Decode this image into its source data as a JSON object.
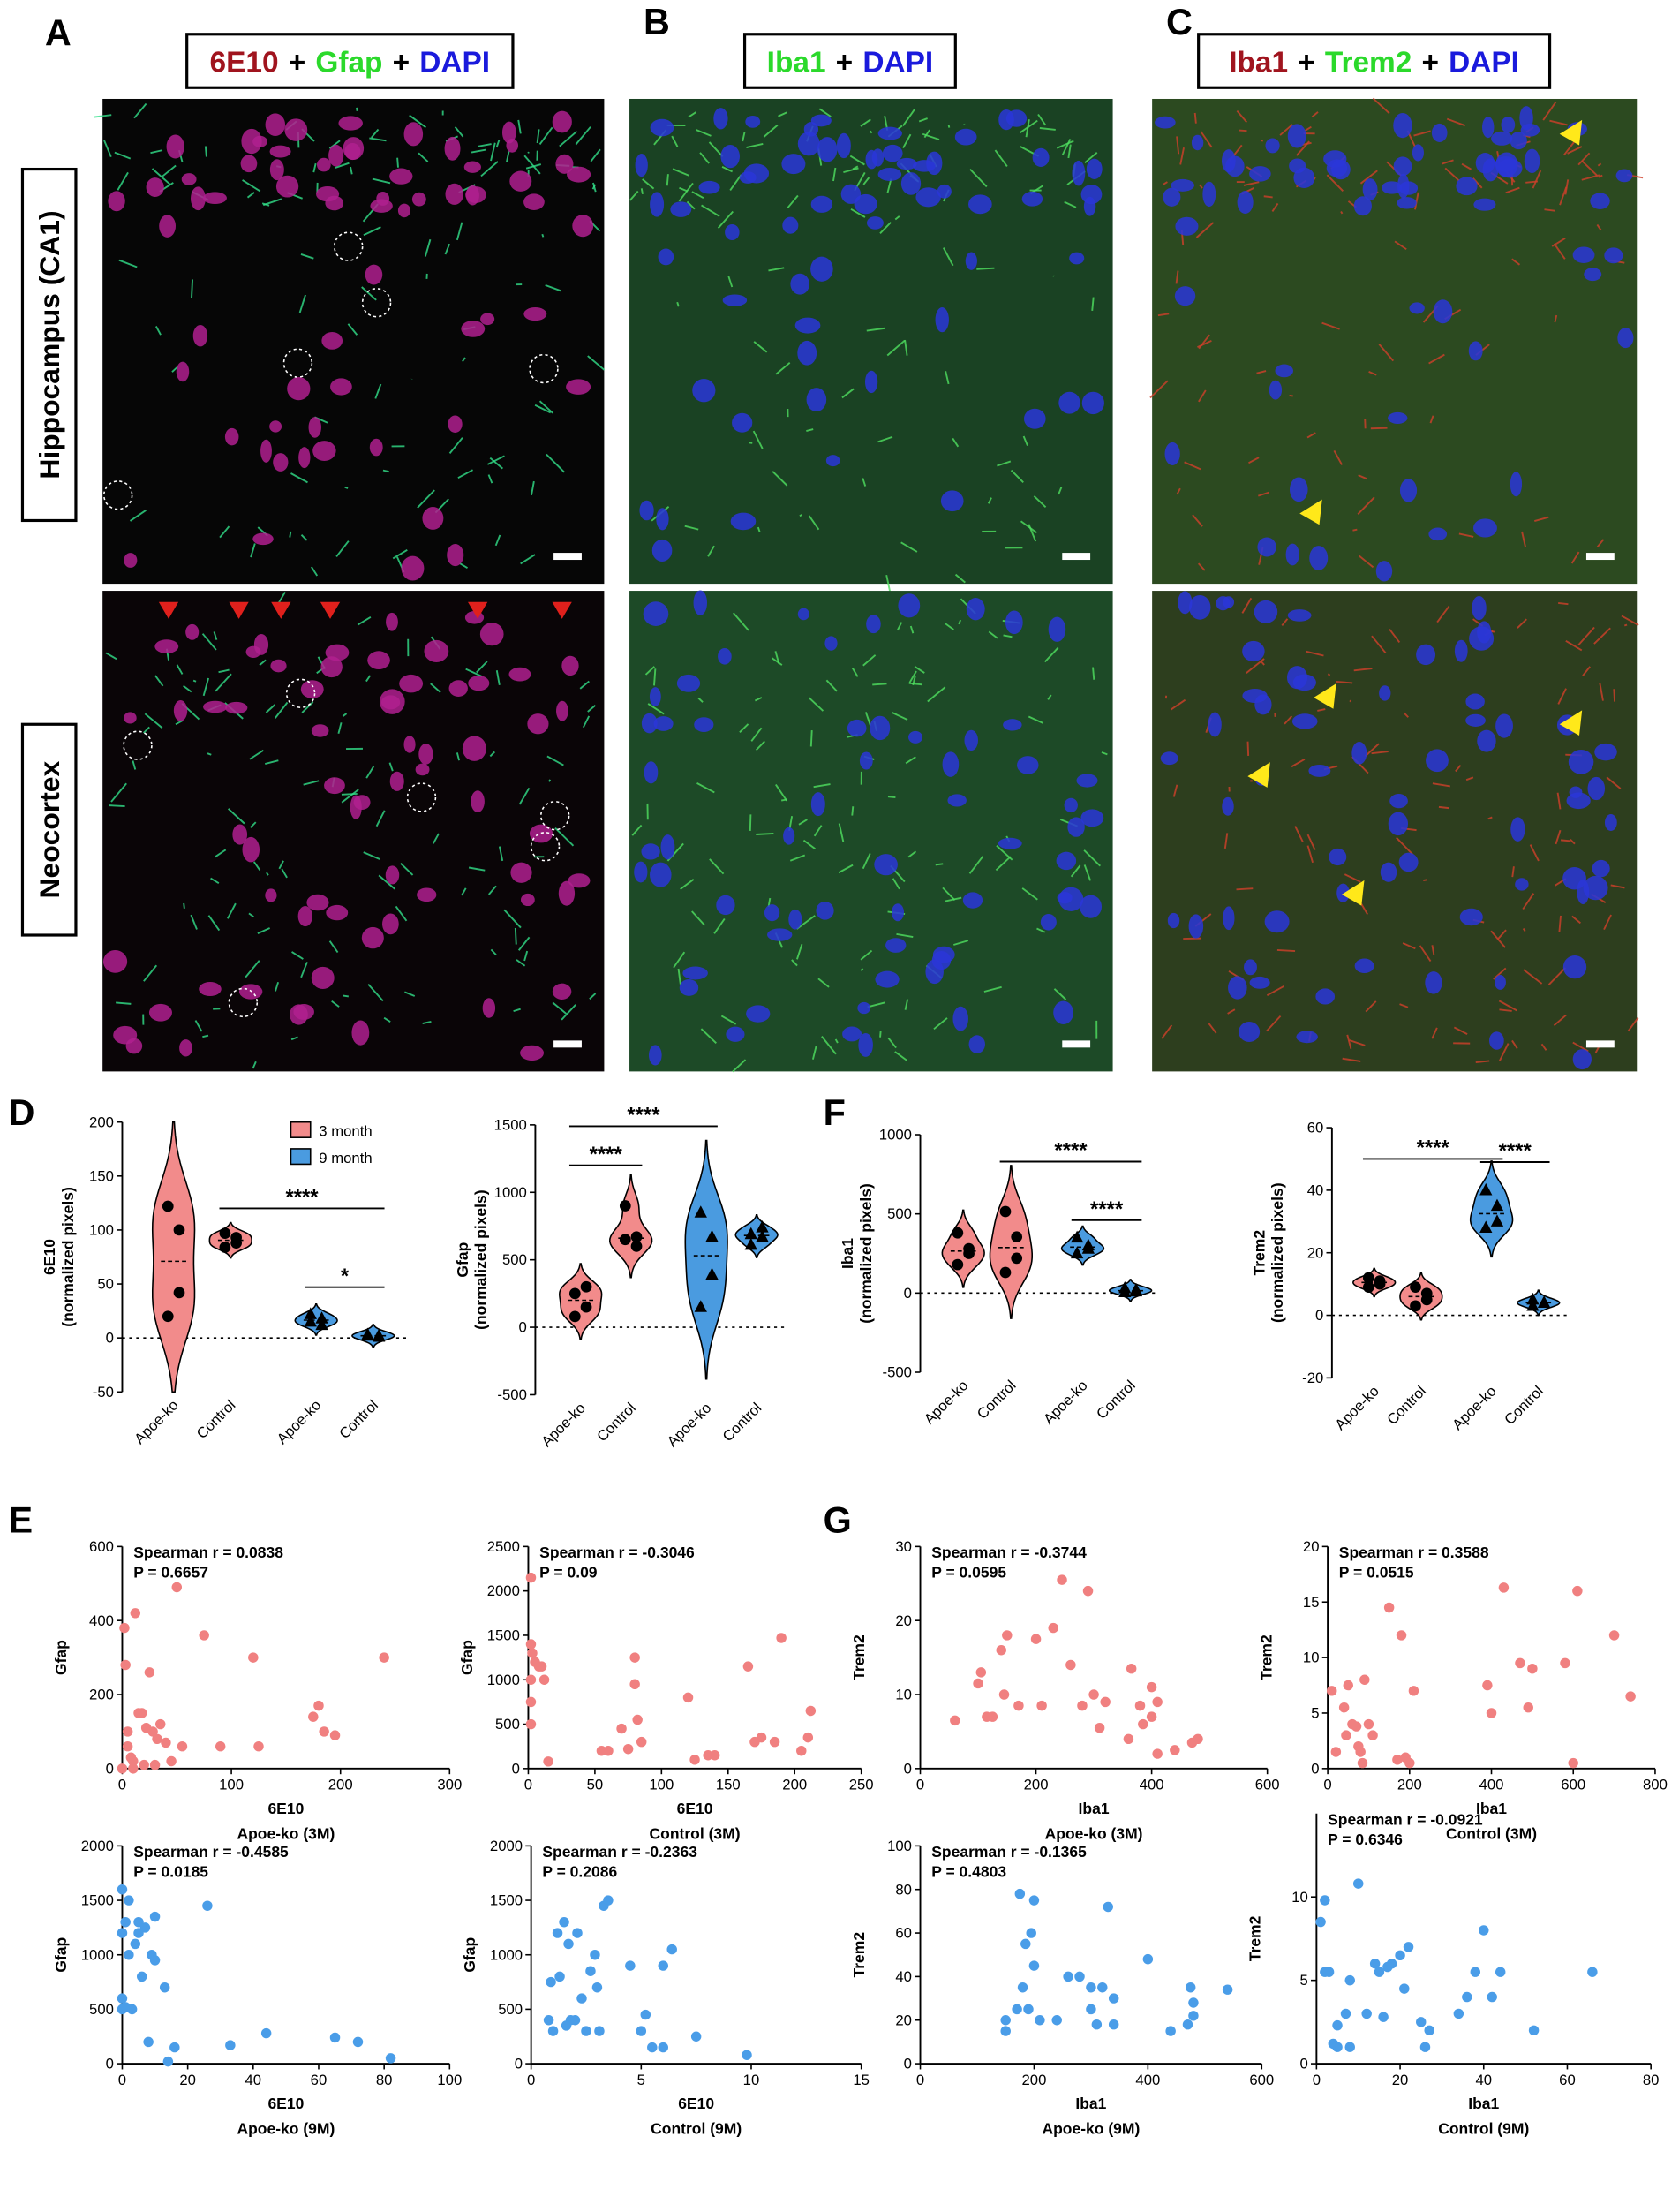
{
  "panel_labels": [
    "A",
    "B",
    "C",
    "D",
    "E",
    "F",
    "G"
  ],
  "images": {
    "headers": [
      [
        {
          "text": "6E10",
          "color": "#a0141e"
        },
        {
          "text": "+",
          "color": "#000000"
        },
        {
          "text": "Gfap",
          "color": "#2bd92b"
        },
        {
          "text": "+",
          "color": "#000000"
        },
        {
          "text": "DAPI",
          "color": "#1a1adc"
        }
      ],
      [
        {
          "text": "Iba1",
          "color": "#2bd92b"
        },
        {
          "text": "+",
          "color": "#000000"
        },
        {
          "text": "DAPI",
          "color": "#1a1adc"
        }
      ],
      [
        {
          "text": "Iba1",
          "color": "#a0141e"
        },
        {
          "text": "+",
          "color": "#000000"
        },
        {
          "text": "Trem2",
          "color": "#2bd92b"
        },
        {
          "text": "+",
          "color": "#000000"
        },
        {
          "text": "DAPI",
          "color": "#1a1adc"
        }
      ]
    ],
    "row_labels": [
      "Hippocampus (CA1)",
      "Neocortex"
    ]
  },
  "chart_data": [
    {
      "type": "violin",
      "ylabel": [
        "6E10",
        "(normalized pixels)"
      ],
      "categories": [
        "Apoe-ko",
        "Control",
        "Apoe-ko",
        "Control"
      ],
      "colors": [
        "#f28b8b",
        "#f28b8b",
        "#4a9be0",
        "#4a9be0"
      ],
      "markers": [
        "circle",
        "circle",
        "triangle",
        "triangle"
      ],
      "points": [
        [
          122,
          100,
          42,
          20
        ],
        [
          97,
          93,
          88,
          84
        ],
        [
          22,
          18,
          12,
          15
        ],
        [
          3,
          2,
          1,
          2
        ]
      ],
      "ylim": [
        -50,
        200
      ],
      "yticks": [
        -50,
        0,
        50,
        100,
        150,
        200
      ],
      "zero_line": true,
      "significance": [
        {
          "label": "****",
          "from": 1,
          "to": 3,
          "y": 120
        },
        {
          "label": "*",
          "from": 2,
          "to": 3,
          "y": 47
        }
      ],
      "legend": [
        {
          "name": "3 month",
          "color": "#f28b8b"
        },
        {
          "name": "9 month",
          "color": "#4a9be0"
        }
      ]
    },
    {
      "type": "violin",
      "ylabel": [
        "Gfap",
        "(normalized pixels)"
      ],
      "categories": [
        "Apoe-ko",
        "Control",
        "Apoe-ko",
        "Control"
      ],
      "colors": [
        "#f28b8b",
        "#f28b8b",
        "#4a9be0",
        "#4a9be0"
      ],
      "markers": [
        "circle",
        "circle",
        "triangle",
        "triangle"
      ],
      "points": [
        [
          250,
          300,
          150,
          80
        ],
        [
          900,
          670,
          600,
          650
        ],
        [
          850,
          670,
          390,
          150
        ],
        [
          690,
          740,
          670,
          610
        ]
      ],
      "ylim": [
        -500,
        1500
      ],
      "yticks": [
        -500,
        0,
        500,
        1000,
        1500
      ],
      "zero_line": true,
      "significance": [
        {
          "label": "****",
          "from": 0,
          "to": 1,
          "y": 1200
        },
        {
          "label": "****",
          "from": 0,
          "to": 2,
          "y": 1490
        }
      ]
    },
    {
      "type": "violin",
      "ylabel": [
        "Iba1",
        "(normalized pixels)"
      ],
      "categories": [
        "Apoe-ko",
        "Control",
        "Apoe-ko",
        "Control"
      ],
      "colors": [
        "#f28b8b",
        "#f28b8b",
        "#4a9be0",
        "#4a9be0"
      ],
      "markers": [
        "circle",
        "circle",
        "triangle",
        "triangle"
      ],
      "points": [
        [
          380,
          280,
          250,
          180
        ],
        [
          515,
          355,
          220,
          130
        ],
        [
          350,
          300,
          280,
          250
        ],
        [
          30,
          20,
          10,
          5
        ]
      ],
      "ylim": [
        -500,
        1000
      ],
      "yticks": [
        -500,
        0,
        500,
        1000
      ],
      "zero_line": true,
      "significance": [
        {
          "label": "****",
          "from": 1,
          "to": 3,
          "y": 830
        },
        {
          "label": "****",
          "from": 2,
          "to": 3,
          "y": 460
        }
      ]
    },
    {
      "type": "violin",
      "ylabel": [
        "Trem2",
        "(normalized pixels)"
      ],
      "categories": [
        "Apoe-ko",
        "Control",
        "Apoe-ko",
        "Control"
      ],
      "colors": [
        "#f28b8b",
        "#f28b8b",
        "#4a9be0",
        "#4a9be0"
      ],
      "markers": [
        "circle",
        "circle",
        "triangle",
        "triangle"
      ],
      "points": [
        [
          12,
          11,
          10,
          9
        ],
        [
          9,
          7,
          5,
          3
        ],
        [
          40,
          35,
          30,
          28
        ],
        [
          5,
          4,
          4,
          3
        ]
      ],
      "ylim": [
        -20,
        60
      ],
      "yticks": [
        -20,
        0,
        20,
        40,
        60
      ],
      "zero_line": true,
      "significance": [
        {
          "label": "****",
          "from": 0,
          "to": 2,
          "y": 50
        },
        {
          "label": "****",
          "from": 2,
          "to": 3,
          "y": 49
        }
      ]
    },
    {
      "type": "scatter",
      "annotations": [
        "Spearman r = 0.0838",
        "P = 0.6657"
      ],
      "xlabel": "6E10",
      "ylabel": "Gfap",
      "group": "Apoe-ko (3M)",
      "color": "#f08080",
      "x": [
        2,
        3,
        5,
        5,
        8,
        10,
        12,
        15,
        18,
        20,
        22,
        25,
        28,
        30,
        32,
        35,
        40,
        45,
        50,
        55,
        75,
        90,
        120,
        125,
        175,
        180,
        185,
        195,
        240,
        10,
        0
      ],
      "y": [
        380,
        280,
        60,
        100,
        30,
        20,
        420,
        150,
        150,
        10,
        110,
        260,
        100,
        10,
        80,
        120,
        70,
        20,
        490,
        60,
        360,
        60,
        300,
        60,
        140,
        170,
        100,
        90,
        300,
        0,
        0
      ],
      "xlim": [
        0,
        300
      ],
      "xticks": [
        0,
        100,
        200,
        300
      ],
      "ylim": [
        0,
        600
      ],
      "yticks": [
        0,
        200,
        400,
        600
      ]
    },
    {
      "type": "scatter",
      "annotations": [
        "Spearman r = -0.3046",
        "P = 0.09"
      ],
      "xlabel": "6E10",
      "ylabel": "Gfap",
      "group": "Control (3M)",
      "color": "#f08080",
      "x": [
        2,
        2,
        2,
        2,
        2,
        3,
        5,
        8,
        10,
        12,
        15,
        55,
        60,
        70,
        75,
        80,
        80,
        82,
        85,
        120,
        125,
        135,
        140,
        165,
        170,
        175,
        185,
        190,
        205,
        210,
        212
      ],
      "y": [
        2150,
        1400,
        1000,
        750,
        500,
        1300,
        1200,
        1150,
        1150,
        1000,
        80,
        200,
        200,
        450,
        220,
        1250,
        950,
        550,
        300,
        800,
        100,
        150,
        150,
        1150,
        300,
        350,
        300,
        1470,
        200,
        350,
        650
      ],
      "xlim": [
        0,
        250
      ],
      "xticks": [
        0,
        50,
        100,
        150,
        200,
        250
      ],
      "ylim": [
        0,
        2500
      ],
      "yticks": [
        0,
        500,
        1000,
        1500,
        2000,
        2500
      ]
    },
    {
      "type": "scatter",
      "annotations": [
        "Spearman r = -0.4585",
        "P = 0.0185"
      ],
      "xlabel": "6E10",
      "ylabel": "Gfap",
      "group": "Apoe-ko (9M)",
      "color": "#4a9de8",
      "x": [
        0,
        0,
        0,
        0,
        1,
        2,
        2,
        3,
        4,
        5,
        5,
        6,
        7,
        8,
        9,
        10,
        10,
        13,
        14,
        16,
        26,
        33,
        44,
        65,
        72,
        82,
        1
      ],
      "y": [
        1600,
        1200,
        600,
        500,
        1300,
        1500,
        1000,
        500,
        1100,
        1200,
        1300,
        800,
        1250,
        200,
        1000,
        1350,
        950,
        700,
        20,
        150,
        1450,
        170,
        280,
        240,
        200,
        50,
        520
      ],
      "xlim": [
        0,
        100
      ],
      "xticks": [
        0,
        20,
        40,
        60,
        80,
        100
      ],
      "ylim": [
        0,
        2000
      ],
      "yticks": [
        0,
        500,
        1000,
        1500,
        2000
      ]
    },
    {
      "type": "scatter",
      "annotations": [
        "Spearman r = -0.2363",
        "P = 0.2086"
      ],
      "xlabel": "6E10",
      "ylabel": "Gfap",
      "group": "Control (9M)",
      "color": "#4a9de8",
      "x": [
        0.8,
        0.9,
        1,
        1.2,
        1.3,
        1.5,
        1.6,
        1.7,
        1.8,
        2,
        2.1,
        2.3,
        2.5,
        2.7,
        2.9,
        3,
        3.1,
        3.3,
        3.5,
        4.5,
        5,
        5.2,
        5.5,
        6,
        6.4,
        7.5,
        9.8,
        6
      ],
      "y": [
        400,
        750,
        300,
        1200,
        800,
        1300,
        350,
        1100,
        400,
        400,
        1200,
        600,
        300,
        850,
        1000,
        700,
        300,
        1450,
        1500,
        900,
        300,
        450,
        150,
        900,
        1050,
        250,
        80,
        150
      ],
      "xlim": [
        0,
        15
      ],
      "xticks": [
        0,
        5,
        10,
        15
      ],
      "ylim": [
        0,
        2000
      ],
      "yticks": [
        0,
        500,
        1000,
        1500,
        2000
      ]
    },
    {
      "type": "scatter",
      "annotations": [
        "Spearman r = -0.3744",
        "P = 0.0595"
      ],
      "xlabel": "Iba1",
      "ylabel": "Trem2",
      "group": "Apoe-ko (3M)",
      "color": "#f08080",
      "x": [
        60,
        100,
        105,
        115,
        125,
        140,
        145,
        150,
        170,
        200,
        210,
        230,
        245,
        260,
        280,
        290,
        300,
        310,
        320,
        360,
        365,
        380,
        385,
        400,
        400,
        410,
        410,
        440,
        470,
        480
      ],
      "y": [
        6.5,
        11.5,
        13,
        7,
        7,
        16,
        10,
        18,
        8.5,
        17.5,
        8.5,
        19,
        25.5,
        14,
        8.5,
        24,
        10,
        5.5,
        9,
        4,
        13.5,
        8.5,
        6,
        11,
        7,
        9,
        2,
        2.5,
        3.5,
        4
      ],
      "xlim": [
        0,
        600
      ],
      "xticks": [
        0,
        200,
        400,
        600
      ],
      "ylim": [
        0,
        30
      ],
      "yticks": [
        0,
        10,
        20,
        30
      ]
    },
    {
      "type": "scatter",
      "annotations": [
        "Spearman r = 0.3588",
        "P = 0.0515"
      ],
      "xlabel": "Iba1",
      "ylabel": "Trem2",
      "group": "Control (3M)",
      "color": "#f08080",
      "x": [
        10,
        20,
        40,
        45,
        50,
        60,
        70,
        75,
        80,
        85,
        90,
        100,
        110,
        150,
        170,
        180,
        190,
        200,
        210,
        390,
        400,
        430,
        470,
        490,
        500,
        580,
        600,
        610,
        700,
        740
      ],
      "y": [
        7,
        1.5,
        5.5,
        3,
        7.5,
        4,
        3.8,
        2,
        1.5,
        0.5,
        8,
        4,
        3,
        14.5,
        0.8,
        12,
        1,
        0.5,
        7,
        7.5,
        5,
        16.3,
        9.5,
        5.5,
        9,
        9.5,
        0.5,
        16,
        12,
        6.5
      ],
      "xlim": [
        0,
        800
      ],
      "xticks": [
        0,
        200,
        400,
        600,
        800
      ],
      "ylim": [
        0,
        20
      ],
      "yticks": [
        0,
        5,
        10,
        15,
        20
      ]
    },
    {
      "type": "scatter",
      "annotations": [
        "Spearman r = -0.1365",
        "P = 0.4803"
      ],
      "xlabel": "Iba1",
      "ylabel": "Trem2",
      "group": "Apoe-ko (9M)",
      "color": "#4a9de8",
      "x": [
        150,
        150,
        170,
        175,
        180,
        185,
        190,
        195,
        200,
        200,
        210,
        240,
        260,
        280,
        300,
        300,
        310,
        320,
        330,
        340,
        340,
        400,
        440,
        470,
        475,
        480,
        480,
        540
      ],
      "y": [
        20,
        15,
        25,
        78,
        35,
        55,
        25,
        60,
        75,
        45,
        20,
        20,
        40,
        40,
        35,
        25,
        18,
        35,
        72,
        30,
        18,
        48,
        15,
        18,
        35,
        28,
        22,
        34
      ],
      "xlim": [
        0,
        600
      ],
      "xticks": [
        0,
        200,
        400,
        600
      ],
      "ylim": [
        0,
        100
      ],
      "yticks": [
        0,
        20,
        40,
        60,
        80,
        100
      ]
    },
    {
      "type": "scatter",
      "annotations": [
        "Spearman r = -0.0921",
        "P = 0.6346"
      ],
      "xlabel": "Iba1",
      "ylabel": "Trem2",
      "group": "Control (9M)",
      "color": "#4a9de8",
      "x": [
        1,
        2,
        2,
        3,
        4,
        5,
        5,
        7,
        8,
        8,
        10,
        12,
        14,
        15,
        16,
        17,
        18,
        20,
        21,
        22,
        25,
        26,
        27,
        34,
        36,
        38,
        40,
        42,
        44,
        52,
        66
      ],
      "y": [
        8.5,
        5.5,
        9.8,
        5.5,
        1.2,
        2.3,
        1,
        3,
        1,
        5,
        10.8,
        3,
        6,
        5.5,
        2.8,
        5.8,
        6,
        6.5,
        4.5,
        7,
        2.5,
        1,
        2,
        3,
        4,
        5.5,
        8,
        4,
        5.5,
        2,
        5.5
      ],
      "xlim": [
        0,
        80
      ],
      "xticks": [
        0,
        20,
        40,
        60,
        80
      ],
      "ylim": [
        0,
        15
      ],
      "yticks": [
        0,
        5,
        10
      ]
    }
  ]
}
